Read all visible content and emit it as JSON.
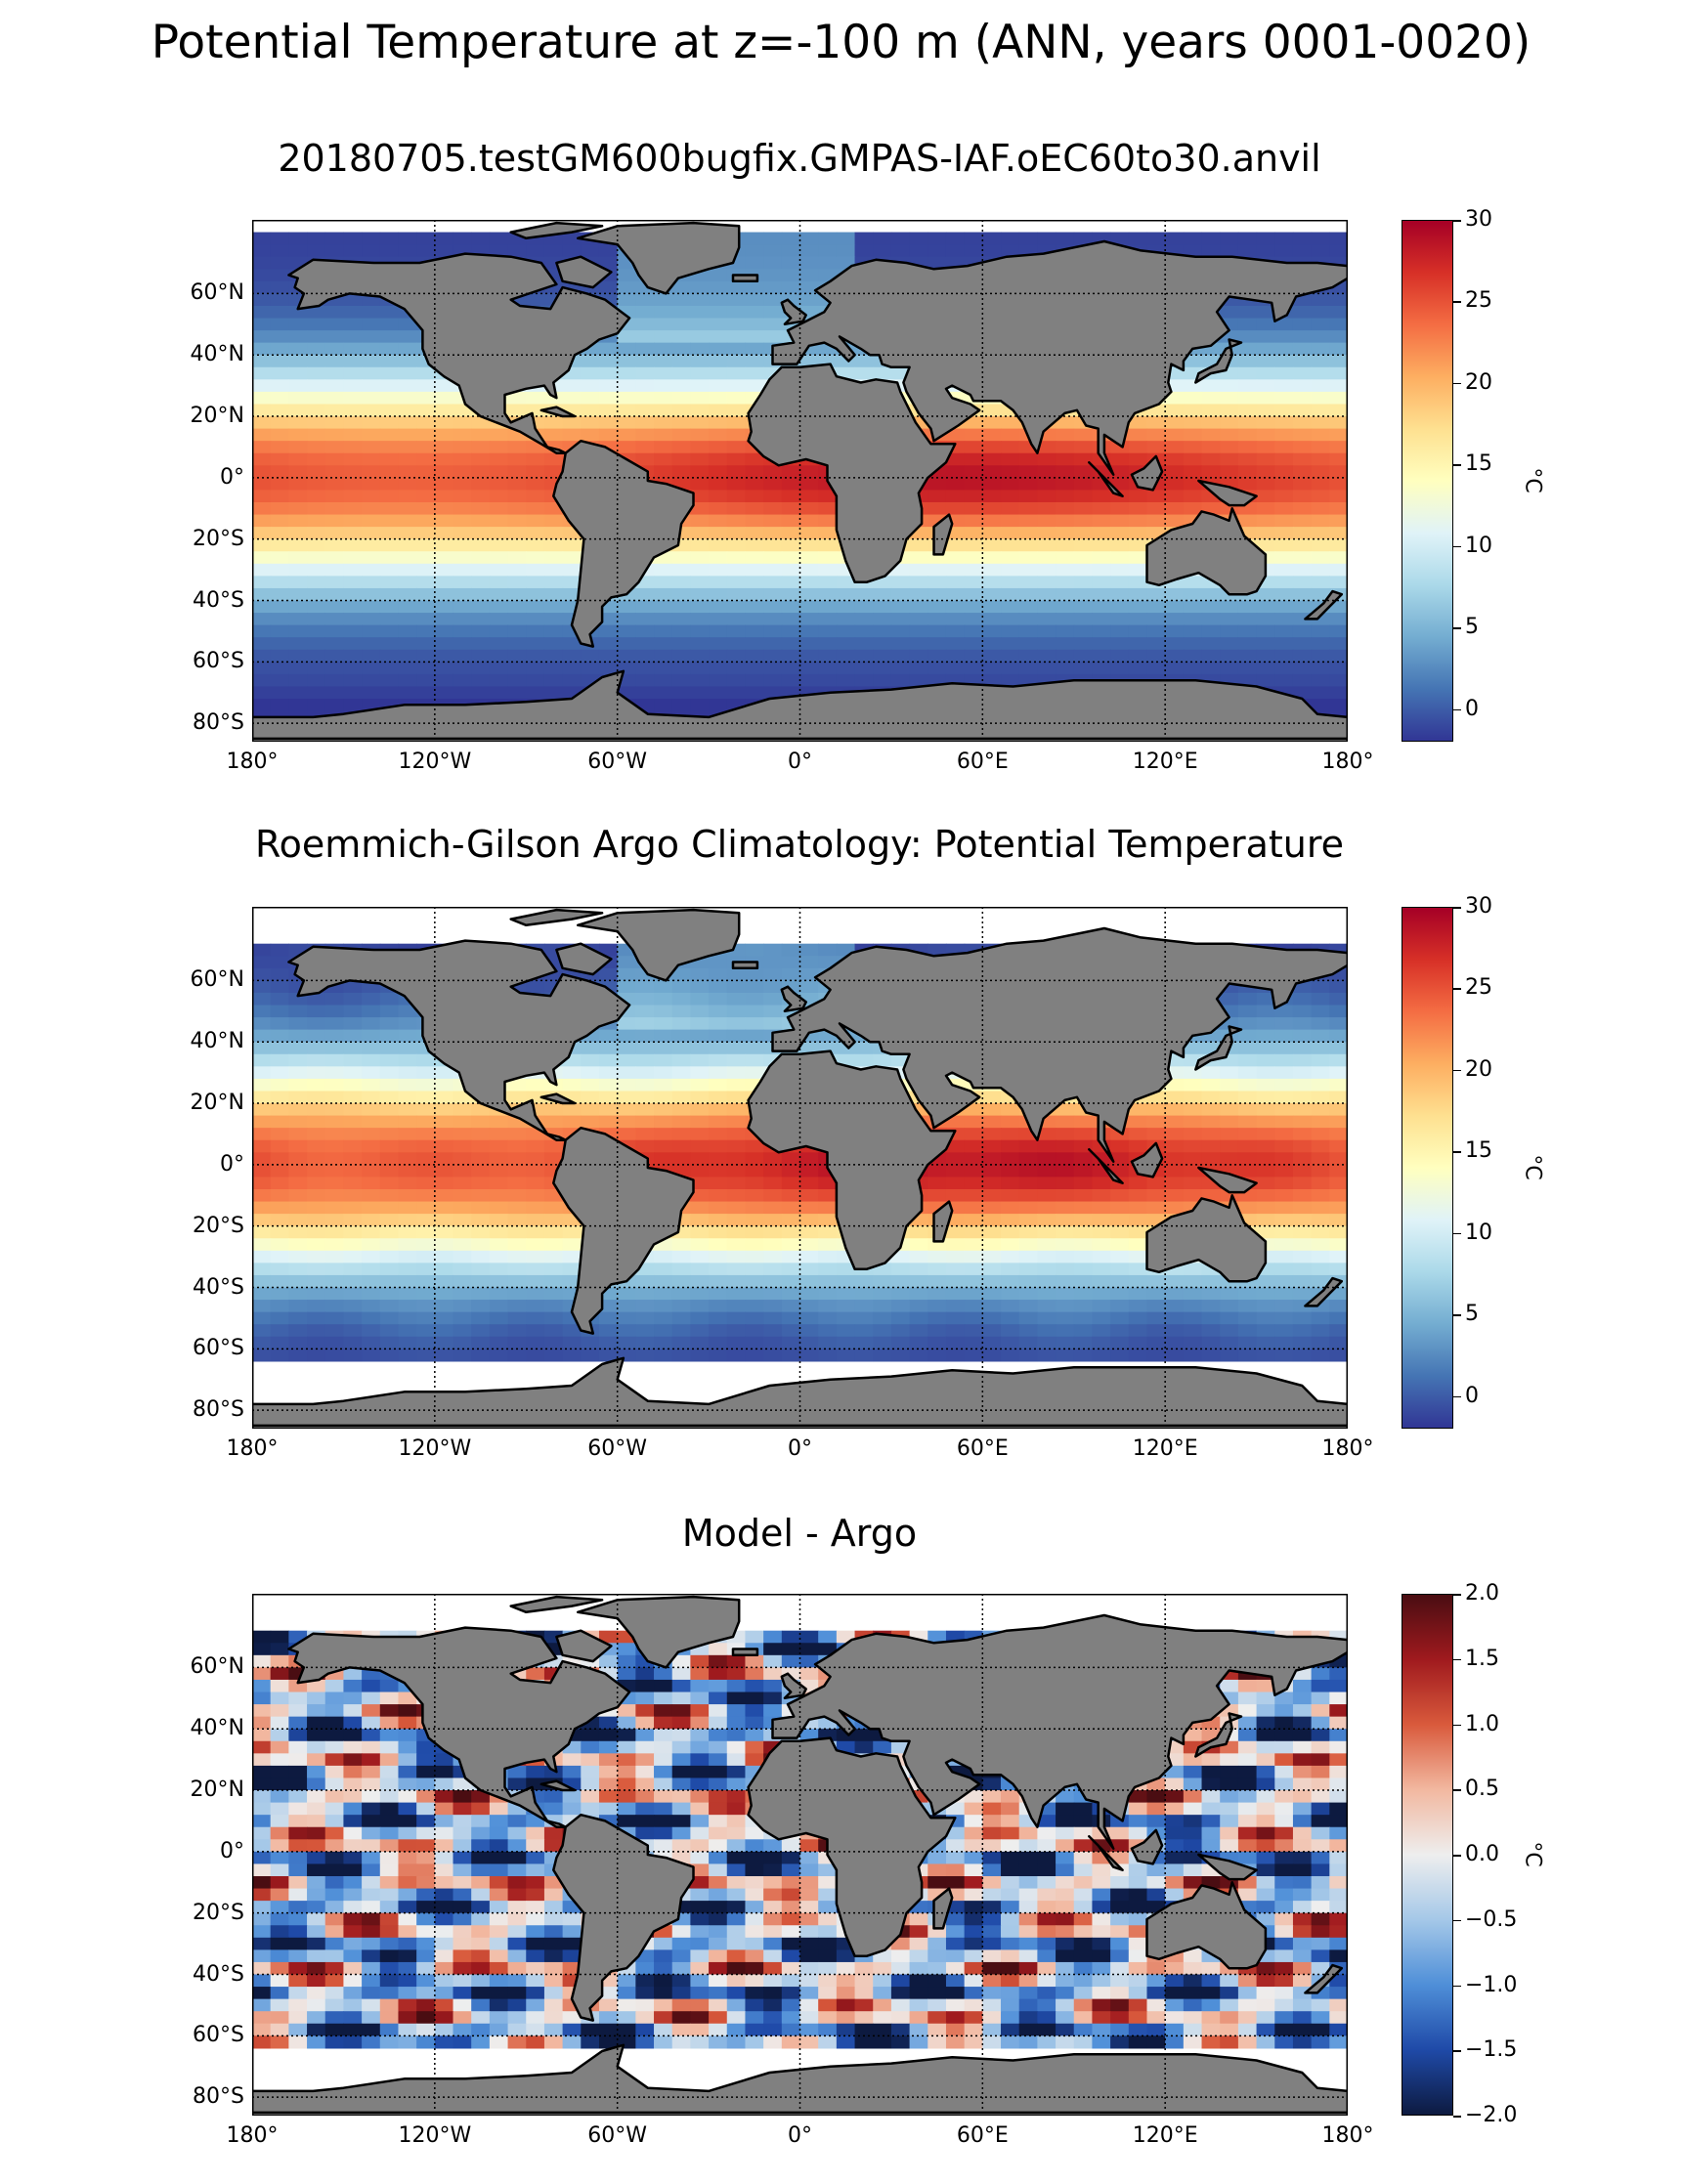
{
  "figure": {
    "title": "Potential Temperature at z=-100 m (ANN, years 0001-0020)"
  },
  "panels": [
    {
      "title": "20180705.testGM600bugfix.GMPAS-IAF.oEC60to30.anvil",
      "colorbar": {
        "ticks": [
          "30",
          "25",
          "20",
          "15",
          "10",
          "5",
          "0"
        ],
        "unit": "°C",
        "range": [
          -2,
          30
        ]
      }
    },
    {
      "title": "Roemmich-Gilson Argo Climatology: Potential Temperature",
      "colorbar": {
        "ticks": [
          "30",
          "25",
          "20",
          "15",
          "10",
          "5",
          "0"
        ],
        "unit": "°C",
        "range": [
          -2,
          30
        ]
      }
    },
    {
      "title": "Model - Argo",
      "colorbar": {
        "ticks": [
          "2.0",
          "1.5",
          "1.0",
          "0.5",
          "0.0",
          "−0.5",
          "−1.0",
          "−1.5",
          "−2.0"
        ],
        "unit": "°C",
        "range": [
          -2,
          2
        ]
      }
    }
  ],
  "axes": {
    "lat_labels": [
      "60°N",
      "40°N",
      "20°N",
      "0°",
      "20°S",
      "40°S",
      "60°S",
      "80°S"
    ],
    "lon_labels": [
      "180°",
      "120°W",
      "60°W",
      "0°",
      "60°E",
      "120°E",
      "180°"
    ]
  },
  "colors": {
    "land": "#808080",
    "temp_cmap": [
      "#313695",
      "#4575b4",
      "#74add1",
      "#abd9e9",
      "#e0f3f8",
      "#ffffbf",
      "#fee090",
      "#fdae61",
      "#f46d43",
      "#d73027",
      "#a50026"
    ],
    "diff_cmap": [
      "#0d1a40",
      "#1f4aa8",
      "#4f8fd8",
      "#a5c8e8",
      "#eeeeee",
      "#f2b8a0",
      "#d95a3c",
      "#a01a1e",
      "#4a0d12"
    ]
  }
}
